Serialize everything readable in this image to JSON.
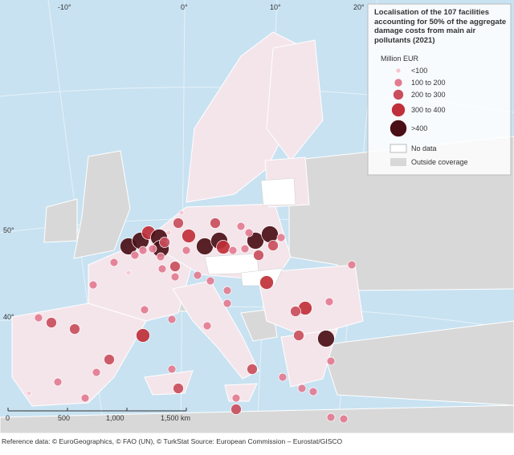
{
  "legend": {
    "title": "Localisation of the 107 facilities accounting for 50% of the aggregate damage costs from main air pollutants (2021)",
    "unit": "Million EUR",
    "items": [
      {
        "label": "<100"
      },
      {
        "label": "100 to 200"
      },
      {
        "label": "200 to 300"
      },
      {
        "label": "300 to 400"
      },
      {
        "label": ">400"
      }
    ],
    "areas": [
      {
        "label": "No data"
      },
      {
        "label": "Outside coverage"
      }
    ]
  },
  "scale": {
    "labels": [
      "0",
      "500",
      "1,000",
      "1,500 km"
    ]
  },
  "graticule": [
    "-10°",
    "0°",
    "10°",
    "20°",
    "50°",
    "40°"
  ],
  "footer": "Reference data: © EuroGeographics, © FAO (UN), © TurkStat Source: European Commission – Eurostat/GISCO"
}
